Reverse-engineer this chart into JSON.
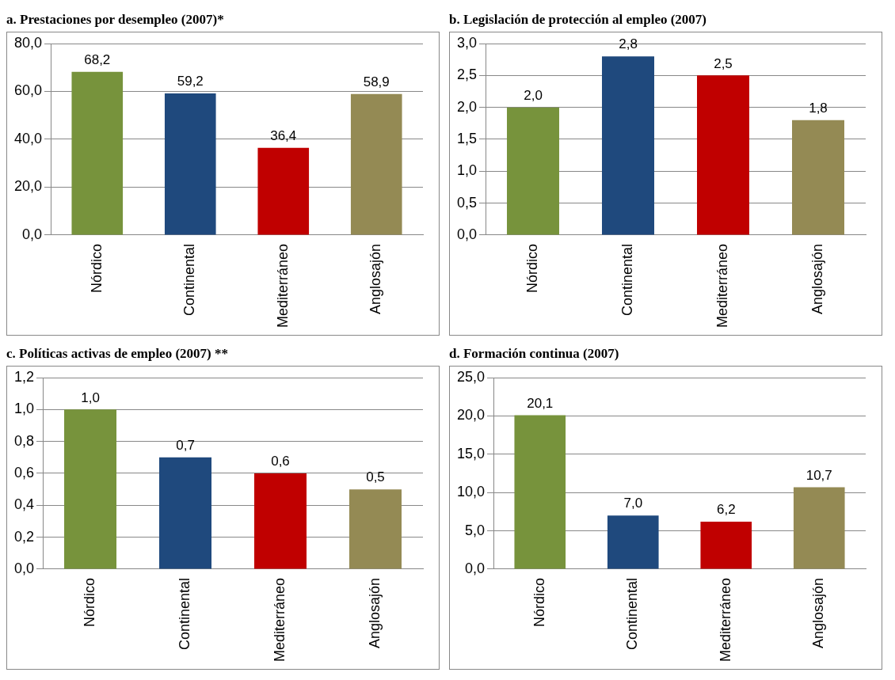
{
  "chart_data": [
    {
      "type": "bar",
      "title": "a. Prestaciones por desempleo (2007)*",
      "categories": [
        "Nórdico",
        "Continental",
        "Mediterráneo",
        "Anglosajón"
      ],
      "values": [
        68.2,
        59.2,
        36.4,
        58.9
      ],
      "value_labels": [
        "68,2",
        "59,2",
        "36,4",
        "58,9"
      ],
      "colors": [
        "#77933c",
        "#1f497d",
        "#c00000",
        "#948a54"
      ],
      "ylim": [
        0,
        80
      ],
      "yticks": [
        {
          "value": 0,
          "label": "0,0"
        },
        {
          "value": 20,
          "label": "20,0"
        },
        {
          "value": 40,
          "label": "40,0"
        },
        {
          "value": 60,
          "label": "60,0"
        },
        {
          "value": 80,
          "label": "80,0"
        }
      ],
      "grid": "y"
    },
    {
      "type": "bar",
      "title": "b. Legislación  de protección al empleo (2007)",
      "categories": [
        "Nórdico",
        "Continental",
        "Mediterráneo",
        "Anglosajón"
      ],
      "values": [
        2.0,
        2.8,
        2.5,
        1.8
      ],
      "value_labels": [
        "2,0",
        "2,8",
        "2,5",
        "1,8"
      ],
      "colors": [
        "#77933c",
        "#1f497d",
        "#c00000",
        "#948a54"
      ],
      "ylim": [
        0,
        3
      ],
      "yticks": [
        {
          "value": 0,
          "label": "0,0"
        },
        {
          "value": 0.5,
          "label": "0,5"
        },
        {
          "value": 1,
          "label": "1,0"
        },
        {
          "value": 1.5,
          "label": "1,5"
        },
        {
          "value": 2,
          "label": "2,0"
        },
        {
          "value": 2.5,
          "label": "2,5"
        },
        {
          "value": 3,
          "label": "3,0"
        }
      ],
      "grid": "y"
    },
    {
      "type": "bar",
      "title": "c. Políticas activas de empleo (2007) **",
      "categories": [
        "Nórdico",
        "Continental",
        "Mediterráneo",
        "Anglosajón"
      ],
      "values": [
        1.0,
        0.7,
        0.6,
        0.5
      ],
      "value_labels": [
        "1,0",
        "0,7",
        "0,6",
        "0,5"
      ],
      "colors": [
        "#77933c",
        "#1f497d",
        "#c00000",
        "#948a54"
      ],
      "ylim": [
        0,
        1.2
      ],
      "yticks": [
        {
          "value": 0,
          "label": "0,0"
        },
        {
          "value": 0.2,
          "label": "0,2"
        },
        {
          "value": 0.4,
          "label": "0,4"
        },
        {
          "value": 0.6,
          "label": "0,6"
        },
        {
          "value": 0.8,
          "label": "0,8"
        },
        {
          "value": 1,
          "label": "1,0"
        },
        {
          "value": 1.2,
          "label": "1,2"
        }
      ],
      "grid": "y"
    },
    {
      "type": "bar",
      "title": "d. Formación continua (2007)",
      "categories": [
        "Nórdico",
        "Continental",
        "Mediterráneo",
        "Anglosajón"
      ],
      "values": [
        20.1,
        7.0,
        6.2,
        10.7
      ],
      "value_labels": [
        "20,1",
        "7,0",
        "6,2",
        "10,7"
      ],
      "colors": [
        "#77933c",
        "#1f497d",
        "#c00000",
        "#948a54"
      ],
      "ylim": [
        0,
        25
      ],
      "yticks": [
        {
          "value": 0,
          "label": "0,0"
        },
        {
          "value": 5,
          "label": "5,0"
        },
        {
          "value": 10,
          "label": "10,0"
        },
        {
          "value": 15,
          "label": "15,0"
        },
        {
          "value": 20,
          "label": "20,0"
        },
        {
          "value": 25,
          "label": "25,0"
        }
      ],
      "grid": "y"
    }
  ]
}
